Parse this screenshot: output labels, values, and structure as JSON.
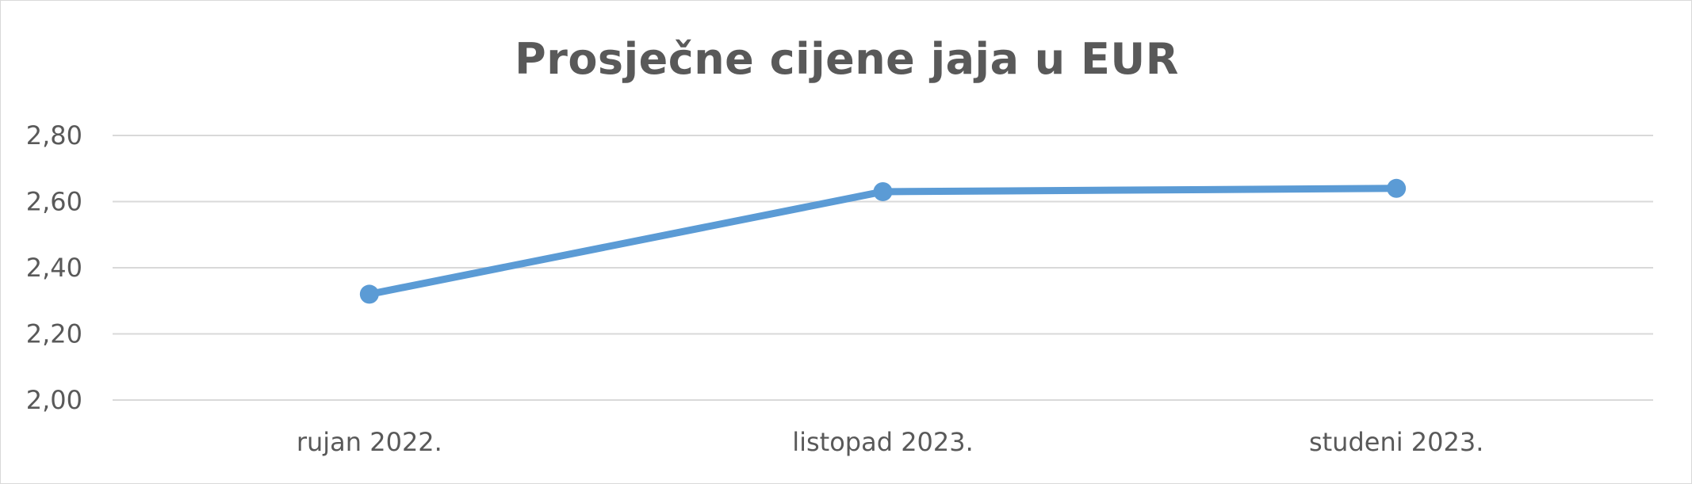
{
  "chart_data": {
    "type": "line",
    "title": "Prosječne cijene jaja u EUR",
    "categories": [
      "rujan 2022.",
      "listopad 2023.",
      "studeni 2023."
    ],
    "series": [
      {
        "values": [
          2.32,
          2.63,
          2.64
        ],
        "color": "#5b9bd5"
      }
    ],
    "ylim": [
      2.0,
      2.8
    ],
    "yticks": [
      2.0,
      2.2,
      2.4,
      2.6,
      2.8
    ],
    "ytick_labels": [
      "2,00",
      "2,20",
      "2,40",
      "2,60",
      "2,80"
    ],
    "xlabel": "",
    "ylabel": "",
    "grid": true,
    "legend": "none",
    "colors": {
      "gridline": "#d9d9d9",
      "text": "#595959"
    }
  }
}
